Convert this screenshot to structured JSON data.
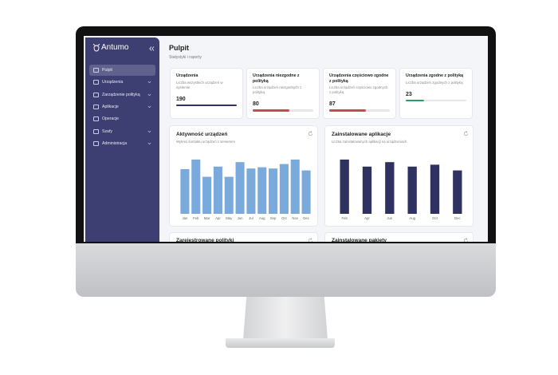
{
  "sidebar": {
    "logo": "Antumo",
    "nav": [
      {
        "label": "Pulpit",
        "active": true,
        "expandable": false
      },
      {
        "label": "Urządzenia",
        "active": false,
        "expandable": true
      },
      {
        "label": "Zarządzenie polityką",
        "active": false,
        "expandable": true
      },
      {
        "label": "Aplikacje",
        "active": false,
        "expandable": true
      },
      {
        "label": "Operacje",
        "active": false,
        "expandable": false
      },
      {
        "label": "Szafy",
        "active": false,
        "expandable": true
      },
      {
        "label": "Administracja",
        "active": false,
        "expandable": true
      }
    ]
  },
  "header": {
    "title": "Pulpit",
    "subtitle": "Statystyki i raporty"
  },
  "cards": [
    {
      "title": "Urządzenia",
      "description": "Liczba wszystkich urządzeń w systemie",
      "value": 190,
      "progress": 100,
      "color": "#2f3160"
    },
    {
      "title": "Urządzenia niezgodne z polityką",
      "description": "Liczba urządzeń niezgodnych z polityką",
      "value": 80,
      "progress": 60,
      "color": "#c94a4f"
    },
    {
      "title": "Urządzenia częściowo zgodne z polityką",
      "description": "Liczba urządzeń częściowo zgodnych z polityką",
      "value": 87,
      "progress": 60,
      "color": "#c94a4f"
    },
    {
      "title": "Urządzenia zgodne z polityką",
      "description": "Liczba urządzeń zgodnych z polityką",
      "value": 23,
      "progress": 30,
      "color": "#2e9c6a"
    }
  ],
  "chart_data": [
    {
      "type": "bar",
      "title": "Aktywność urządzeń",
      "subtitle": "Wykres kontaktu urządzeń z serwerem",
      "categories": [
        "Jan",
        "Feb",
        "Mar",
        "Apr",
        "May",
        "Jun",
        "Jul",
        "Aug",
        "Sep",
        "Oct",
        "Nov",
        "Dec"
      ],
      "values": [
        70,
        85,
        58,
        74,
        58,
        81,
        71,
        73,
        71,
        78,
        85,
        68
      ],
      "color": "#7aa9dc",
      "ylim": [
        0,
        100
      ]
    },
    {
      "type": "bar",
      "title": "Zainstalowane aplikacje",
      "subtitle": "Liczba zainstalowanych aplikacji na urządzeniach",
      "categories": [
        "Feb",
        "Apr",
        "Jun",
        "Aug",
        "Oct",
        "Dec"
      ],
      "values": [
        85,
        74,
        81,
        74,
        77,
        68
      ],
      "color": "#2f3160",
      "ylim": [
        0,
        100
      ]
    }
  ],
  "panels": [
    {
      "title": "Zarejestrowane polityki"
    },
    {
      "title": "Zainstalowane pakiety"
    }
  ]
}
